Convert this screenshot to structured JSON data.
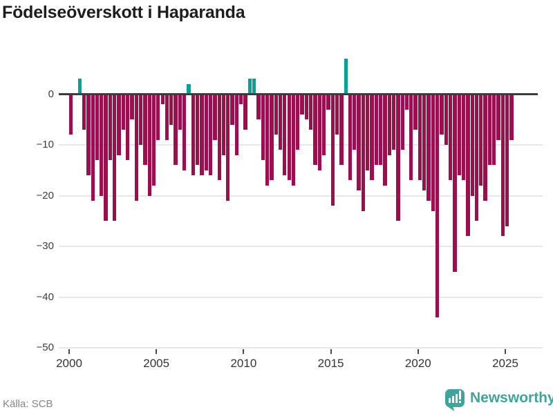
{
  "title": "Födelseöverskott i Haparanda",
  "footer": {
    "source": "Källa: SCB",
    "brand": "Newsworthy"
  },
  "colors": {
    "negative_bar": "#9e0d4e",
    "positive_bar": "#00a29b",
    "zero_line": "#3b3b3b",
    "gridline": "#e8e8e8",
    "logo_teal": "#3fa49b",
    "title_text": "#1d1d1b",
    "axis_text": "#3c3c3c",
    "source_text": "#85858c"
  },
  "chart_data": {
    "type": "bar",
    "title": "Födelseöverskott i Haparanda",
    "xlabel": "",
    "ylabel": "",
    "x_axis": {
      "tick_years": [
        2000,
        2005,
        2010,
        2015,
        2020,
        2025
      ],
      "tick_labels": [
        "2000",
        "2005",
        "2010",
        "2015",
        "2020",
        "2025"
      ]
    },
    "y_axis": {
      "ticks": [
        0,
        -10,
        -20,
        -30,
        -40,
        -50
      ],
      "tick_labels": [
        "0",
        "−10",
        "−20",
        "−30",
        "−40",
        "−50"
      ],
      "ylim": [
        -50,
        8
      ]
    },
    "grid": "horizontal",
    "legend": "none",
    "frequency": "quarterly",
    "series_by_year": [
      {
        "year": 2000,
        "quarters": [
          -8,
          0,
          3,
          -7
        ]
      },
      {
        "year": 2001,
        "quarters": [
          -16,
          -21,
          -13,
          -20
        ]
      },
      {
        "year": 2002,
        "quarters": [
          -25,
          -13,
          -25,
          -12
        ]
      },
      {
        "year": 2003,
        "quarters": [
          -7,
          -13,
          -5,
          -21
        ]
      },
      {
        "year": 2004,
        "quarters": [
          -10,
          -14,
          -20,
          -18
        ]
      },
      {
        "year": 2005,
        "quarters": [
          -9,
          -2,
          -9,
          -6
        ]
      },
      {
        "year": 2006,
        "quarters": [
          -14,
          -7,
          -15,
          2
        ]
      },
      {
        "year": 2007,
        "quarters": [
          -16,
          -14,
          -16,
          -15
        ]
      },
      {
        "year": 2008,
        "quarters": [
          -16,
          -9,
          -17,
          -12
        ]
      },
      {
        "year": 2009,
        "quarters": [
          -21,
          -6,
          -12,
          -2
        ]
      },
      {
        "year": 2010,
        "quarters": [
          -7,
          3,
          3,
          -5
        ]
      },
      {
        "year": 2011,
        "quarters": [
          -13,
          -18,
          -17,
          -8
        ]
      },
      {
        "year": 2012,
        "quarters": [
          -11,
          -16,
          -17,
          -18
        ]
      },
      {
        "year": 2013,
        "quarters": [
          -11,
          -4,
          -5,
          -7
        ]
      },
      {
        "year": 2014,
        "quarters": [
          -14,
          -15,
          -12,
          -3
        ]
      },
      {
        "year": 2015,
        "quarters": [
          -22,
          -8,
          -14,
          7
        ]
      },
      {
        "year": 2016,
        "quarters": [
          -17,
          -11,
          -19,
          -23
        ]
      },
      {
        "year": 2017,
        "quarters": [
          -15,
          -17,
          -14,
          -14
        ]
      },
      {
        "year": 2018,
        "quarters": [
          -18,
          -12,
          -11,
          -25
        ]
      },
      {
        "year": 2019,
        "quarters": [
          -11,
          -3,
          -17,
          -7
        ]
      },
      {
        "year": 2020,
        "quarters": [
          -17,
          -19,
          -21,
          -23
        ]
      },
      {
        "year": 2021,
        "quarters": [
          -44,
          -8,
          -10,
          -17
        ]
      },
      {
        "year": 2022,
        "quarters": [
          -35,
          -16,
          -17,
          -28
        ]
      },
      {
        "year": 2023,
        "quarters": [
          -20,
          -25,
          -18,
          -21
        ]
      },
      {
        "year": 2024,
        "quarters": [
          -14,
          -14,
          -9,
          -28
        ]
      },
      {
        "year": 2025,
        "quarters": [
          -26,
          -9
        ]
      }
    ]
  }
}
